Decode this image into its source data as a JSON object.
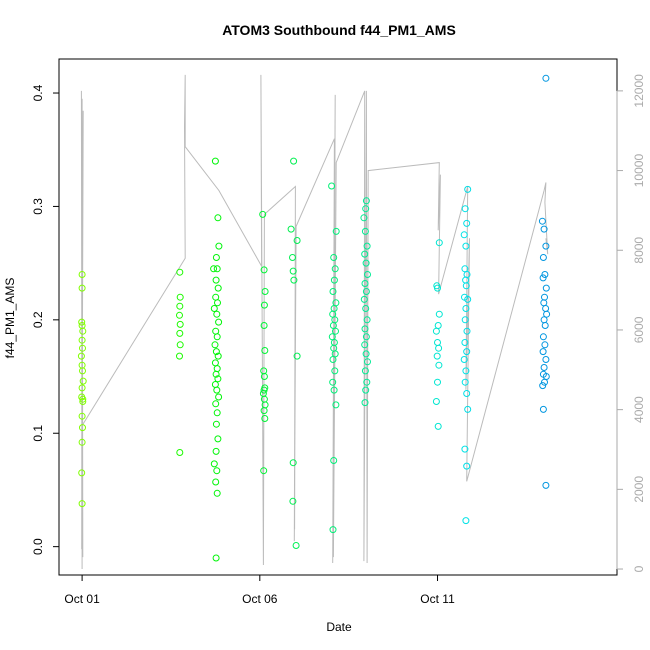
{
  "chart_data": {
    "type": "scatter",
    "title": "ATOM3 Southbound f44_PM1_AMS",
    "xlabel": "Date",
    "ylabel": "f44_PM1_AMS",
    "x_ticks": [
      {
        "day": 1,
        "label": "Oct 01"
      },
      {
        "day": 6,
        "label": "Oct 06"
      },
      {
        "day": 11,
        "label": "Oct 11"
      }
    ],
    "xlim_days": [
      0.35,
      16.05
    ],
    "ylim": [
      -0.025,
      0.43
    ],
    "y_ticks": [
      "0.0",
      "0.1",
      "0.2",
      "0.3",
      "0.4"
    ],
    "y2lim": [
      -150,
      12800
    ],
    "y2_ticks": [
      "0",
      "2000",
      "4000",
      "6000",
      "8000",
      "10000",
      "12000"
    ],
    "y2_color": "#aaaaaa",
    "grid": false,
    "points": [
      {
        "x": 1.0,
        "y": 0.24
      },
      {
        "x": 1.0,
        "y": 0.228
      },
      {
        "x": 0.99,
        "y": 0.198
      },
      {
        "x": 1.02,
        "y": 0.19
      },
      {
        "x": 1.0,
        "y": 0.182
      },
      {
        "x": 1.01,
        "y": 0.175
      },
      {
        "x": 0.98,
        "y": 0.168
      },
      {
        "x": 1.0,
        "y": 0.16
      },
      {
        "x": 1.01,
        "y": 0.155
      },
      {
        "x": 1.03,
        "y": 0.146
      },
      {
        "x": 1.0,
        "y": 0.14
      },
      {
        "x": 0.99,
        "y": 0.132
      },
      {
        "x": 1.02,
        "y": 0.128
      },
      {
        "x": 1.0,
        "y": 0.115
      },
      {
        "x": 1.01,
        "y": 0.105
      },
      {
        "x": 1.0,
        "y": 0.092
      },
      {
        "x": 0.99,
        "y": 0.065
      },
      {
        "x": 1.0,
        "y": 0.038
      },
      {
        "x": 1.0,
        "y": 0.195
      },
      {
        "x": 1.02,
        "y": 0.13
      },
      {
        "x": 3.75,
        "y": 0.242
      },
      {
        "x": 3.76,
        "y": 0.22
      },
      {
        "x": 3.75,
        "y": 0.212
      },
      {
        "x": 3.74,
        "y": 0.204
      },
      {
        "x": 3.76,
        "y": 0.196
      },
      {
        "x": 3.75,
        "y": 0.188
      },
      {
        "x": 3.76,
        "y": 0.178
      },
      {
        "x": 3.74,
        "y": 0.168
      },
      {
        "x": 3.75,
        "y": 0.083
      },
      {
        "x": 4.75,
        "y": 0.34
      },
      {
        "x": 4.82,
        "y": 0.29
      },
      {
        "x": 4.85,
        "y": 0.265
      },
      {
        "x": 4.78,
        "y": 0.255
      },
      {
        "x": 4.8,
        "y": 0.245
      },
      {
        "x": 4.77,
        "y": 0.235
      },
      {
        "x": 4.83,
        "y": 0.228
      },
      {
        "x": 4.76,
        "y": 0.22
      },
      {
        "x": 4.81,
        "y": 0.215
      },
      {
        "x": 4.72,
        "y": 0.21
      },
      {
        "x": 4.79,
        "y": 0.205
      },
      {
        "x": 4.84,
        "y": 0.198
      },
      {
        "x": 4.76,
        "y": 0.19
      },
      {
        "x": 4.8,
        "y": 0.185
      },
      {
        "x": 4.74,
        "y": 0.178
      },
      {
        "x": 4.78,
        "y": 0.172
      },
      {
        "x": 4.83,
        "y": 0.168
      },
      {
        "x": 4.75,
        "y": 0.162
      },
      {
        "x": 4.8,
        "y": 0.157
      },
      {
        "x": 4.77,
        "y": 0.152
      },
      {
        "x": 4.82,
        "y": 0.148
      },
      {
        "x": 4.75,
        "y": 0.143
      },
      {
        "x": 4.79,
        "y": 0.138
      },
      {
        "x": 4.84,
        "y": 0.132
      },
      {
        "x": 4.76,
        "y": 0.126
      },
      {
        "x": 4.8,
        "y": 0.118
      },
      {
        "x": 4.78,
        "y": 0.108
      },
      {
        "x": 4.82,
        "y": 0.095
      },
      {
        "x": 4.77,
        "y": 0.084
      },
      {
        "x": 4.72,
        "y": 0.073
      },
      {
        "x": 4.79,
        "y": 0.067
      },
      {
        "x": 4.76,
        "y": 0.057
      },
      {
        "x": 4.8,
        "y": 0.047
      },
      {
        "x": 4.77,
        "y": -0.01
      },
      {
        "x": 4.7,
        "y": 0.245
      },
      {
        "x": 6.08,
        "y": 0.293
      },
      {
        "x": 6.12,
        "y": 0.244
      },
      {
        "x": 6.15,
        "y": 0.225
      },
      {
        "x": 6.13,
        "y": 0.213
      },
      {
        "x": 6.12,
        "y": 0.195
      },
      {
        "x": 6.14,
        "y": 0.173
      },
      {
        "x": 6.11,
        "y": 0.155
      },
      {
        "x": 6.13,
        "y": 0.15
      },
      {
        "x": 6.14,
        "y": 0.14
      },
      {
        "x": 6.1,
        "y": 0.135
      },
      {
        "x": 6.13,
        "y": 0.13
      },
      {
        "x": 6.15,
        "y": 0.125
      },
      {
        "x": 6.12,
        "y": 0.12
      },
      {
        "x": 6.14,
        "y": 0.113
      },
      {
        "x": 6.11,
        "y": 0.067
      },
      {
        "x": 6.12,
        "y": 0.138
      },
      {
        "x": 6.95,
        "y": 0.34
      },
      {
        "x": 6.88,
        "y": 0.28
      },
      {
        "x": 7.05,
        "y": 0.27
      },
      {
        "x": 6.92,
        "y": 0.255
      },
      {
        "x": 6.94,
        "y": 0.243
      },
      {
        "x": 6.96,
        "y": 0.235
      },
      {
        "x": 7.05,
        "y": 0.168
      },
      {
        "x": 6.94,
        "y": 0.074
      },
      {
        "x": 6.93,
        "y": 0.04
      },
      {
        "x": 7.02,
        "y": 0.001
      },
      {
        "x": 8.02,
        "y": 0.318
      },
      {
        "x": 8.15,
        "y": 0.278
      },
      {
        "x": 8.08,
        "y": 0.255
      },
      {
        "x": 8.12,
        "y": 0.245
      },
      {
        "x": 8.1,
        "y": 0.235
      },
      {
        "x": 8.06,
        "y": 0.225
      },
      {
        "x": 8.14,
        "y": 0.215
      },
      {
        "x": 8.09,
        "y": 0.21
      },
      {
        "x": 8.05,
        "y": 0.205
      },
      {
        "x": 8.11,
        "y": 0.2
      },
      {
        "x": 8.07,
        "y": 0.195
      },
      {
        "x": 8.13,
        "y": 0.19
      },
      {
        "x": 8.04,
        "y": 0.185
      },
      {
        "x": 8.1,
        "y": 0.18
      },
      {
        "x": 8.08,
        "y": 0.175
      },
      {
        "x": 8.12,
        "y": 0.17
      },
      {
        "x": 8.06,
        "y": 0.165
      },
      {
        "x": 8.11,
        "y": 0.155
      },
      {
        "x": 8.05,
        "y": 0.145
      },
      {
        "x": 8.09,
        "y": 0.138
      },
      {
        "x": 8.14,
        "y": 0.125
      },
      {
        "x": 8.08,
        "y": 0.076
      },
      {
        "x": 8.06,
        "y": 0.015
      },
      {
        "x": 9.0,
        "y": 0.305
      },
      {
        "x": 8.98,
        "y": 0.298
      },
      {
        "x": 8.93,
        "y": 0.29
      },
      {
        "x": 8.97,
        "y": 0.278
      },
      {
        "x": 9.02,
        "y": 0.265
      },
      {
        "x": 8.95,
        "y": 0.258
      },
      {
        "x": 8.99,
        "y": 0.25
      },
      {
        "x": 9.03,
        "y": 0.24
      },
      {
        "x": 8.96,
        "y": 0.232
      },
      {
        "x": 9.0,
        "y": 0.225
      },
      {
        "x": 8.94,
        "y": 0.218
      },
      {
        "x": 8.98,
        "y": 0.21
      },
      {
        "x": 9.02,
        "y": 0.2
      },
      {
        "x": 8.96,
        "y": 0.192
      },
      {
        "x": 9.0,
        "y": 0.185
      },
      {
        "x": 8.95,
        "y": 0.178
      },
      {
        "x": 8.99,
        "y": 0.17
      },
      {
        "x": 9.03,
        "y": 0.163
      },
      {
        "x": 8.97,
        "y": 0.155
      },
      {
        "x": 9.01,
        "y": 0.145
      },
      {
        "x": 8.98,
        "y": 0.138
      },
      {
        "x": 8.96,
        "y": 0.127
      },
      {
        "x": 11.05,
        "y": 0.268
      },
      {
        "x": 10.98,
        "y": 0.23
      },
      {
        "x": 11.0,
        "y": 0.228
      },
      {
        "x": 11.05,
        "y": 0.205
      },
      {
        "x": 10.97,
        "y": 0.19
      },
      {
        "x": 11.02,
        "y": 0.195
      },
      {
        "x": 11.0,
        "y": 0.18
      },
      {
        "x": 11.03,
        "y": 0.175
      },
      {
        "x": 10.99,
        "y": 0.168
      },
      {
        "x": 11.04,
        "y": 0.16
      },
      {
        "x": 11.0,
        "y": 0.145
      },
      {
        "x": 10.97,
        "y": 0.128
      },
      {
        "x": 11.02,
        "y": 0.106
      },
      {
        "x": 11.85,
        "y": 0.315
      },
      {
        "x": 11.78,
        "y": 0.298
      },
      {
        "x": 11.82,
        "y": 0.285
      },
      {
        "x": 11.75,
        "y": 0.275
      },
      {
        "x": 11.8,
        "y": 0.265
      },
      {
        "x": 11.77,
        "y": 0.245
      },
      {
        "x": 11.83,
        "y": 0.24
      },
      {
        "x": 11.79,
        "y": 0.235
      },
      {
        "x": 11.81,
        "y": 0.23
      },
      {
        "x": 11.76,
        "y": 0.22
      },
      {
        "x": 11.85,
        "y": 0.218
      },
      {
        "x": 11.8,
        "y": 0.21
      },
      {
        "x": 11.78,
        "y": 0.2
      },
      {
        "x": 11.83,
        "y": 0.19
      },
      {
        "x": 11.77,
        "y": 0.18
      },
      {
        "x": 11.82,
        "y": 0.172
      },
      {
        "x": 11.75,
        "y": 0.165
      },
      {
        "x": 11.8,
        "y": 0.155
      },
      {
        "x": 11.78,
        "y": 0.145
      },
      {
        "x": 11.82,
        "y": 0.135
      },
      {
        "x": 11.85,
        "y": 0.121
      },
      {
        "x": 11.77,
        "y": 0.086
      },
      {
        "x": 11.82,
        "y": 0.071
      },
      {
        "x": 11.8,
        "y": 0.023
      },
      {
        "x": 14.05,
        "y": 0.413
      },
      {
        "x": 13.95,
        "y": 0.287
      },
      {
        "x": 14.0,
        "y": 0.28
      },
      {
        "x": 14.05,
        "y": 0.265
      },
      {
        "x": 13.98,
        "y": 0.255
      },
      {
        "x": 14.02,
        "y": 0.24
      },
      {
        "x": 13.97,
        "y": 0.237
      },
      {
        "x": 14.06,
        "y": 0.228
      },
      {
        "x": 14.01,
        "y": 0.22
      },
      {
        "x": 13.99,
        "y": 0.215
      },
      {
        "x": 14.04,
        "y": 0.21
      },
      {
        "x": 14.07,
        "y": 0.205
      },
      {
        "x": 14.0,
        "y": 0.2
      },
      {
        "x": 14.03,
        "y": 0.195
      },
      {
        "x": 13.98,
        "y": 0.185
      },
      {
        "x": 14.02,
        "y": 0.178
      },
      {
        "x": 13.97,
        "y": 0.172
      },
      {
        "x": 14.05,
        "y": 0.165
      },
      {
        "x": 14.0,
        "y": 0.158
      },
      {
        "x": 13.98,
        "y": 0.152
      },
      {
        "x": 14.06,
        "y": 0.15
      },
      {
        "x": 14.01,
        "y": 0.145
      },
      {
        "x": 13.96,
        "y": 0.142
      },
      {
        "x": 13.98,
        "y": 0.121
      },
      {
        "x": 14.05,
        "y": 0.054
      }
    ],
    "line_series": {
      "color": "#bbbbbb",
      "points": [
        [
          1.0,
          0
        ],
        [
          0.98,
          12000
        ],
        [
          1.02,
          300
        ],
        [
          1.0,
          11800
        ],
        [
          0.99,
          500
        ],
        [
          1.03,
          11500
        ],
        [
          1.0,
          3600
        ],
        [
          3.9,
          7800
        ],
        [
          3.88,
          11100
        ],
        [
          3.9,
          12400
        ],
        [
          3.9,
          10600
        ],
        [
          4.85,
          9500
        ],
        [
          6.05,
          7600
        ],
        [
          6.03,
          12400
        ],
        [
          6.1,
          100
        ],
        [
          6.13,
          8900
        ],
        [
          7.0,
          9600
        ],
        [
          6.98,
          1000
        ],
        [
          7.0,
          8700
        ],
        [
          6.97,
          700
        ],
        [
          7.02,
          8600
        ],
        [
          8.1,
          10800
        ],
        [
          8.05,
          150
        ],
        [
          8.12,
          11900
        ],
        [
          8.07,
          300
        ],
        [
          8.15,
          10200
        ],
        [
          8.95,
          12000
        ],
        [
          8.93,
          200
        ],
        [
          9.0,
          12000
        ],
        [
          9.02,
          150
        ],
        [
          9.05,
          10000
        ],
        [
          11.05,
          10200
        ],
        [
          11.02,
          8500
        ],
        [
          11.08,
          9900
        ],
        [
          11.03,
          6900
        ],
        [
          11.85,
          9600
        ],
        [
          11.8,
          4500
        ],
        [
          11.9,
          8300
        ],
        [
          11.82,
          2200
        ],
        [
          14.0,
          9500
        ],
        [
          14.05,
          9700
        ],
        [
          14.02,
          9200
        ],
        [
          14.1,
          7900
        ],
        [
          14.05,
          8300
        ]
      ]
    }
  }
}
